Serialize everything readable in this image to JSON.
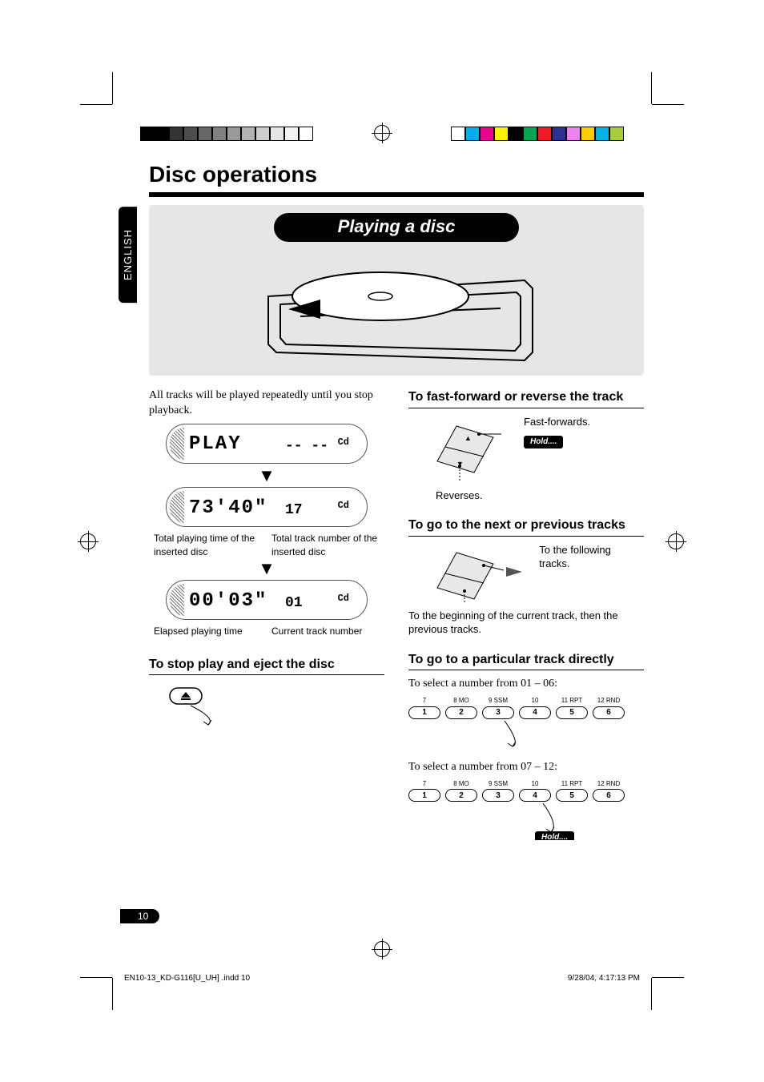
{
  "page": {
    "number": "10",
    "language_tab": "ENGLISH"
  },
  "title": "Disc operations",
  "banner": "Playing a disc",
  "intro": "All tracks will be played repeatedly until you stop playback.",
  "displays": {
    "play": {
      "main": "PLAY",
      "sub": "-- --",
      "mode": "Cd"
    },
    "totals": {
      "main": "73'40\"",
      "sub": "17",
      "mode": "Cd"
    },
    "current": {
      "main": "00'03\"",
      "sub": "01",
      "mode": "Cd"
    }
  },
  "captions": {
    "total_time": "Total playing time of the inserted disc",
    "total_tracks": "Total track number of the inserted disc",
    "elapsed": "Elapsed playing time",
    "current_track": "Current track number"
  },
  "subheads": {
    "stop_eject": "To stop play and eject the disc",
    "ff_rev": "To fast-forward or reverse the track",
    "next_prev": "To go to the next or previous tracks",
    "direct": "To go to a particular track directly"
  },
  "right": {
    "ff": "Fast-forwards.",
    "rev": "Reverses.",
    "following": "To the following tracks.",
    "beginning": "To the beginning of the current track, then the previous tracks.",
    "select_1_6": "To select a number from 01 – 06:",
    "select_7_12": "To select a number from 07 – 12:",
    "hold": "Hold...."
  },
  "presets": {
    "top_labels": [
      "7",
      "8  MO",
      "9  SSM",
      "10",
      "11  RPT",
      "12  RND"
    ],
    "nums": [
      "1",
      "2",
      "3",
      "4",
      "5",
      "6"
    ]
  },
  "colorbar": {
    "grays": [
      "#000000",
      "#000000",
      "#333333",
      "#4d4d4d",
      "#666666",
      "#808080",
      "#999999",
      "#b3b3b3",
      "#cccccc",
      "#e6e6e6",
      "#f2f2f2",
      "#ffffff"
    ],
    "colors": [
      "#ffffff",
      "#00aeef",
      "#ec008c",
      "#fff200",
      "#000000",
      "#00a651",
      "#ed1c24",
      "#2e3192",
      "#ee82ee",
      "#ffcc00",
      "#00b5e2",
      "#a6ce39"
    ]
  },
  "footer": {
    "file": "EN10-13_KD-G116[U_UH] .indd   10",
    "timestamp": "9/28/04, 4:17:13 PM"
  }
}
